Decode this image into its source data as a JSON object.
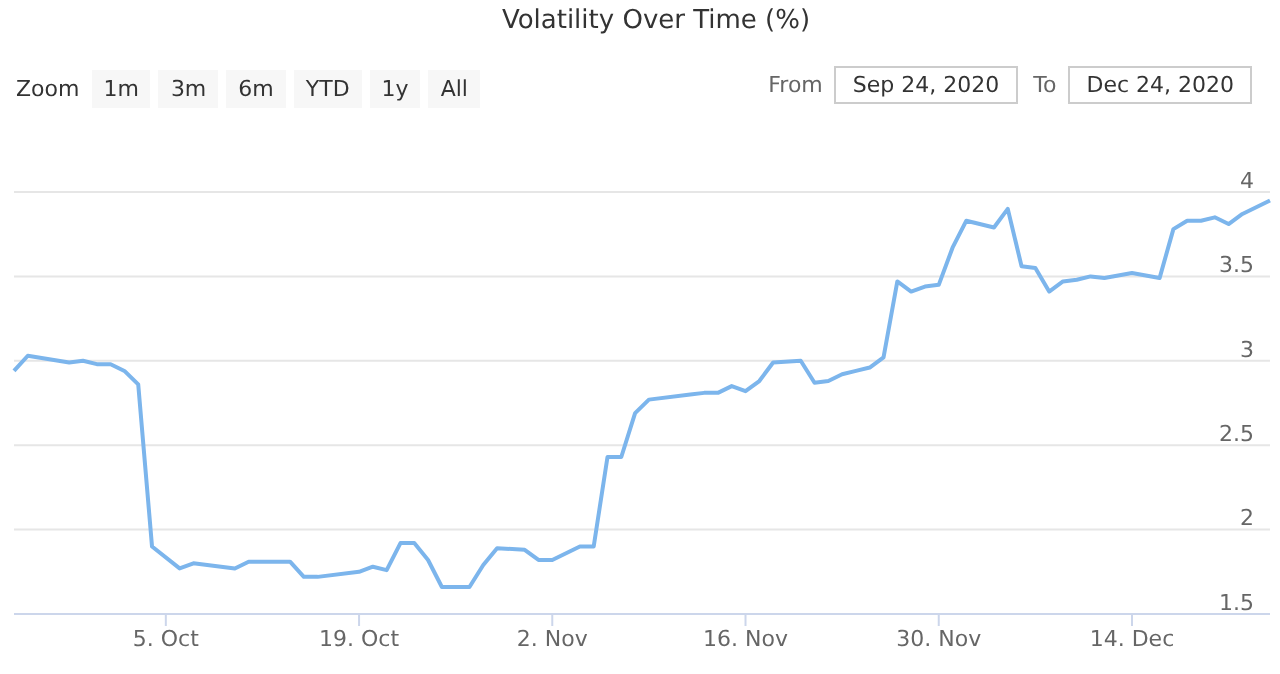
{
  "chart_data": {
    "type": "line",
    "title": "Volatility Over Time (%)",
    "annotations": [
      "Zoom",
      "1m",
      "3m",
      "6m",
      "YTD",
      "1y",
      "All",
      "From",
      "Sep 24, 2020",
      "To",
      "Dec 24, 2020"
    ],
    "x": [
      "2020-09-24",
      "2020-09-25",
      "2020-09-28",
      "2020-09-29",
      "2020-09-30",
      "2020-10-01",
      "2020-10-02",
      "2020-10-03",
      "2020-10-04",
      "2020-10-06",
      "2020-10-07",
      "2020-10-10",
      "2020-10-11",
      "2020-10-13",
      "2020-10-14",
      "2020-10-15",
      "2020-10-16",
      "2020-10-19",
      "2020-10-20",
      "2020-10-21",
      "2020-10-22",
      "2020-10-23",
      "2020-10-24",
      "2020-10-25",
      "2020-10-27",
      "2020-10-28",
      "2020-10-29",
      "2020-10-31",
      "2020-11-01",
      "2020-11-02",
      "2020-11-04",
      "2020-11-05",
      "2020-11-06",
      "2020-11-07",
      "2020-11-08",
      "2020-11-09",
      "2020-11-12",
      "2020-11-13",
      "2020-11-14",
      "2020-11-15",
      "2020-11-16",
      "2020-11-17",
      "2020-11-18",
      "2020-11-20",
      "2020-11-21",
      "2020-11-22",
      "2020-11-23",
      "2020-11-24",
      "2020-11-25",
      "2020-11-26",
      "2020-11-27",
      "2020-11-28",
      "2020-11-29",
      "2020-11-30",
      "2020-12-01",
      "2020-12-02",
      "2020-12-04",
      "2020-12-05",
      "2020-12-06",
      "2020-12-07",
      "2020-12-08",
      "2020-12-09",
      "2020-12-10",
      "2020-12-11",
      "2020-12-12",
      "2020-12-14",
      "2020-12-16",
      "2020-12-17",
      "2020-12-18",
      "2020-12-19",
      "2020-12-20",
      "2020-12-21",
      "2020-12-22",
      "2020-12-24"
    ],
    "series": [
      {
        "color": "#7cb5ec",
        "values": [
          2.94,
          3.03,
          2.99,
          3.0,
          2.98,
          2.98,
          2.94,
          2.86,
          1.9,
          1.77,
          1.8,
          1.77,
          1.81,
          1.81,
          1.81,
          1.72,
          1.72,
          1.75,
          1.78,
          1.76,
          1.92,
          1.92,
          1.82,
          1.66,
          1.66,
          1.79,
          1.89,
          1.88,
          1.82,
          1.82,
          1.9,
          1.9,
          2.43,
          2.43,
          2.69,
          2.77,
          2.8,
          2.81,
          2.81,
          2.85,
          2.82,
          2.88,
          2.99,
          3.0,
          2.87,
          2.88,
          2.92,
          2.94,
          2.96,
          3.02,
          3.47,
          3.41,
          3.44,
          3.45,
          3.67,
          3.83,
          3.79,
          3.9,
          3.56,
          3.55,
          3.41,
          3.47,
          3.48,
          3.5,
          3.49,
          3.52,
          3.49,
          3.78,
          3.83,
          3.83,
          3.85,
          3.81,
          3.87,
          3.95
        ]
      }
    ],
    "xlim": [
      "2020-09-24",
      "2020-12-24"
    ],
    "xticks": [
      {
        "value": "2020-10-05",
        "label": "5. Oct"
      },
      {
        "value": "2020-10-19",
        "label": "19. Oct"
      },
      {
        "value": "2020-11-02",
        "label": "2. Nov"
      },
      {
        "value": "2020-11-16",
        "label": "16. Nov"
      },
      {
        "value": "2020-11-30",
        "label": "30. Nov"
      },
      {
        "value": "2020-12-14",
        "label": "14. Dec"
      }
    ],
    "ylim": [
      1.5,
      4
    ],
    "yticks": [
      1.5,
      2,
      2.5,
      3,
      3.5,
      4
    ],
    "grid": "y",
    "legend": false
  }
}
